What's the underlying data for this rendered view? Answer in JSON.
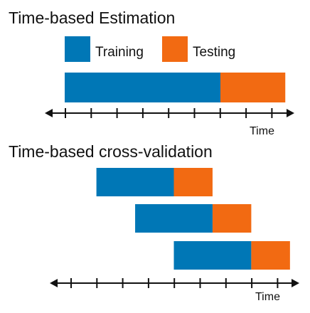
{
  "colors": {
    "training": "#0077B6",
    "testing": "#F26A12",
    "axis": "#111111",
    "text": "#111111"
  },
  "legend": {
    "training_label": "Training",
    "testing_label": "Testing"
  },
  "estimation": {
    "title": "Time-based Estimation",
    "axis_label": "Time",
    "bar": {
      "train_start": 0,
      "train_end": 6,
      "test_end": 8.5
    },
    "ticks": 9
  },
  "cross_validation": {
    "title": "Time-based cross-validation",
    "axis_label": "Time",
    "folds": [
      {
        "train_start": 2,
        "train_end": 5,
        "test_end": 6.5
      },
      {
        "train_start": 3.5,
        "train_end": 6.5,
        "test_end": 8
      },
      {
        "train_start": 5,
        "train_end": 8,
        "test_end": 9.5
      }
    ],
    "ticks": 9
  }
}
